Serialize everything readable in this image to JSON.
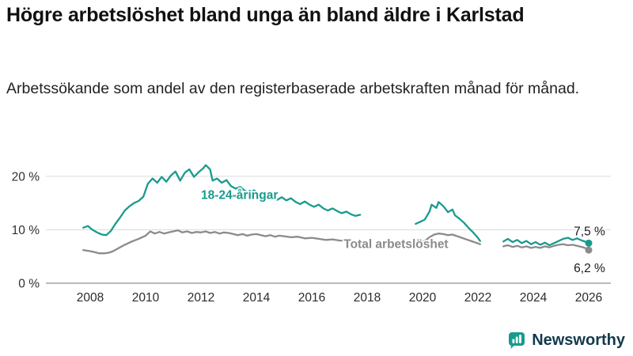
{
  "header": {
    "title": "Högre arbetslöshet bland unga än bland äldre i Karlstad",
    "subtitle": "Arbetssökande som andel av den registerbaserade arbetskraften månad för månad."
  },
  "footer": {
    "brand": "Newsworthy"
  },
  "colors": {
    "accent_teal": "#189b8e",
    "line_gray": "#8b8b8b",
    "grid_light": "#dcdcdc",
    "axis_baseline": "#919191",
    "text_dark": "#1a1a1a",
    "brand_text": "#123a4c"
  },
  "chart_data": {
    "type": "line",
    "title": "Högre arbetslöshet bland unga än bland äldre i Karlstad",
    "subtitle": "Arbetssökande som andel av den registerbaserade arbetskraften månad för månad.",
    "unit": "%",
    "grid": "horizontal",
    "legend_position": "inline",
    "xlim": [
      2006.4,
      2026.8
    ],
    "ylim": [
      0,
      22.8
    ],
    "x_ticks": [
      2008,
      2010,
      2012,
      2014,
      2016,
      2018,
      2020,
      2022,
      2024,
      2026
    ],
    "y_ticks": [
      {
        "value": 0,
        "label": "0 %"
      },
      {
        "value": 10,
        "label": "10 %"
      },
      {
        "value": 20,
        "label": "20 %"
      }
    ],
    "series": [
      {
        "id": "total",
        "name": "Total arbetslöshet",
        "color": "#8b8b8b",
        "end_value": 6.2,
        "end_label": {
          "text": "6,2 %",
          "placement": "below"
        },
        "inline_label": {
          "x": 2017.15,
          "y": 6.6
        },
        "segments": [
          [
            [
              2007.75,
              6.2
            ],
            [
              2008.0,
              6.0
            ],
            [
              2008.17,
              5.8
            ],
            [
              2008.33,
              5.6
            ],
            [
              2008.5,
              5.6
            ],
            [
              2008.67,
              5.7
            ],
            [
              2008.83,
              6.0
            ],
            [
              2009.0,
              6.5
            ],
            [
              2009.25,
              7.2
            ],
            [
              2009.5,
              7.8
            ],
            [
              2009.75,
              8.3
            ],
            [
              2010.0,
              8.9
            ],
            [
              2010.17,
              9.7
            ],
            [
              2010.33,
              9.3
            ],
            [
              2010.5,
              9.6
            ],
            [
              2010.67,
              9.3
            ],
            [
              2010.83,
              9.5
            ],
            [
              2011.0,
              9.7
            ],
            [
              2011.17,
              9.9
            ],
            [
              2011.33,
              9.5
            ],
            [
              2011.5,
              9.7
            ],
            [
              2011.67,
              9.4
            ],
            [
              2011.83,
              9.6
            ],
            [
              2012.0,
              9.5
            ],
            [
              2012.17,
              9.7
            ],
            [
              2012.33,
              9.4
            ],
            [
              2012.5,
              9.6
            ],
            [
              2012.67,
              9.3
            ],
            [
              2012.83,
              9.5
            ],
            [
              2013.0,
              9.4
            ],
            [
              2013.17,
              9.2
            ],
            [
              2013.33,
              9.0
            ],
            [
              2013.5,
              9.2
            ],
            [
              2013.67,
              8.9
            ],
            [
              2013.83,
              9.1
            ],
            [
              2014.0,
              9.2
            ],
            [
              2014.17,
              9.0
            ],
            [
              2014.33,
              8.8
            ],
            [
              2014.5,
              9.0
            ],
            [
              2014.67,
              8.7
            ],
            [
              2014.83,
              8.9
            ],
            [
              2015.0,
              8.8
            ],
            [
              2015.25,
              8.6
            ],
            [
              2015.5,
              8.7
            ],
            [
              2015.75,
              8.4
            ],
            [
              2016.0,
              8.5
            ],
            [
              2016.25,
              8.3
            ],
            [
              2016.5,
              8.1
            ],
            [
              2016.75,
              8.2
            ],
            [
              2017.0,
              8.0
            ],
            [
              2017.25,
              7.9
            ],
            [
              2017.5,
              7.8
            ],
            [
              2017.75,
              7.8
            ]
          ],
          [
            [
              2019.75,
              7.4
            ],
            [
              2019.92,
              7.6
            ],
            [
              2020.08,
              7.9
            ],
            [
              2020.25,
              8.6
            ],
            [
              2020.42,
              9.1
            ],
            [
              2020.58,
              9.3
            ],
            [
              2020.75,
              9.2
            ],
            [
              2020.92,
              9.0
            ],
            [
              2021.08,
              9.1
            ],
            [
              2021.25,
              8.8
            ],
            [
              2021.42,
              8.5
            ],
            [
              2021.58,
              8.2
            ],
            [
              2021.75,
              7.9
            ],
            [
              2021.92,
              7.6
            ],
            [
              2022.08,
              7.3
            ]
          ],
          [
            [
              2022.92,
              6.9
            ],
            [
              2023.08,
              7.1
            ],
            [
              2023.25,
              6.8
            ],
            [
              2023.42,
              7.0
            ],
            [
              2023.58,
              6.7
            ],
            [
              2023.75,
              6.9
            ],
            [
              2023.92,
              6.6
            ],
            [
              2024.08,
              6.8
            ],
            [
              2024.25,
              6.6
            ],
            [
              2024.42,
              6.9
            ],
            [
              2024.58,
              6.7
            ],
            [
              2024.75,
              7.0
            ],
            [
              2024.92,
              7.2
            ],
            [
              2025.08,
              7.3
            ],
            [
              2025.25,
              7.1
            ],
            [
              2025.42,
              7.2
            ],
            [
              2025.58,
              7.0
            ],
            [
              2025.75,
              6.8
            ],
            [
              2025.92,
              6.5
            ],
            [
              2026.0,
              6.2
            ]
          ]
        ]
      },
      {
        "id": "youth",
        "name": "18-24-åringar",
        "color": "#189b8e",
        "end_value": 7.5,
        "end_label": {
          "text": "7,5 %",
          "placement": "above"
        },
        "inline_label": {
          "x": 2012.0,
          "y": 15.8
        },
        "segments": [
          [
            [
              2007.75,
              10.4
            ],
            [
              2007.92,
              10.7
            ],
            [
              2008.08,
              10.0
            ],
            [
              2008.25,
              9.5
            ],
            [
              2008.42,
              9.1
            ],
            [
              2008.58,
              9.0
            ],
            [
              2008.75,
              9.8
            ],
            [
              2008.92,
              11.2
            ],
            [
              2009.08,
              12.3
            ],
            [
              2009.25,
              13.6
            ],
            [
              2009.42,
              14.4
            ],
            [
              2009.58,
              15.0
            ],
            [
              2009.75,
              15.4
            ],
            [
              2009.92,
              16.2
            ],
            [
              2010.08,
              18.6
            ],
            [
              2010.25,
              19.6
            ],
            [
              2010.42,
              18.8
            ],
            [
              2010.58,
              19.9
            ],
            [
              2010.75,
              19.0
            ],
            [
              2010.92,
              20.2
            ],
            [
              2011.08,
              20.9
            ],
            [
              2011.25,
              19.2
            ],
            [
              2011.42,
              20.7
            ],
            [
              2011.58,
              21.3
            ],
            [
              2011.75,
              19.9
            ],
            [
              2011.92,
              20.8
            ],
            [
              2012.08,
              21.5
            ],
            [
              2012.17,
              22.1
            ],
            [
              2012.33,
              21.3
            ],
            [
              2012.42,
              19.2
            ],
            [
              2012.58,
              19.6
            ],
            [
              2012.75,
              18.8
            ],
            [
              2012.92,
              19.3
            ],
            [
              2013.08,
              18.2
            ],
            [
              2013.25,
              17.7
            ],
            [
              2013.42,
              18.0
            ],
            [
              2013.58,
              17.3
            ],
            [
              2013.75,
              16.9
            ],
            [
              2013.92,
              17.4
            ],
            [
              2014.08,
              16.7
            ],
            [
              2014.25,
              16.3
            ],
            [
              2014.42,
              16.7
            ],
            [
              2014.58,
              16.0
            ],
            [
              2014.75,
              15.6
            ],
            [
              2014.92,
              16.1
            ],
            [
              2015.08,
              15.5
            ],
            [
              2015.25,
              15.9
            ],
            [
              2015.42,
              15.2
            ],
            [
              2015.58,
              14.8
            ],
            [
              2015.75,
              15.3
            ],
            [
              2015.92,
              14.7
            ],
            [
              2016.08,
              14.3
            ],
            [
              2016.25,
              14.7
            ],
            [
              2016.42,
              14.0
            ],
            [
              2016.58,
              13.6
            ],
            [
              2016.75,
              14.0
            ],
            [
              2016.92,
              13.5
            ],
            [
              2017.08,
              13.1
            ],
            [
              2017.25,
              13.4
            ],
            [
              2017.42,
              12.9
            ],
            [
              2017.58,
              12.6
            ],
            [
              2017.75,
              12.8
            ]
          ],
          [
            [
              2019.75,
              11.1
            ],
            [
              2019.92,
              11.5
            ],
            [
              2020.08,
              11.9
            ],
            [
              2020.25,
              13.4
            ],
            [
              2020.33,
              14.7
            ],
            [
              2020.5,
              14.1
            ],
            [
              2020.58,
              15.2
            ],
            [
              2020.75,
              14.4
            ],
            [
              2020.92,
              13.3
            ],
            [
              2021.08,
              13.8
            ],
            [
              2021.17,
              12.7
            ],
            [
              2021.33,
              12.1
            ],
            [
              2021.5,
              11.3
            ],
            [
              2021.67,
              10.3
            ],
            [
              2021.83,
              9.5
            ],
            [
              2022.0,
              8.5
            ],
            [
              2022.08,
              7.9
            ]
          ],
          [
            [
              2022.92,
              7.8
            ],
            [
              2023.08,
              8.3
            ],
            [
              2023.25,
              7.7
            ],
            [
              2023.42,
              8.1
            ],
            [
              2023.58,
              7.5
            ],
            [
              2023.75,
              7.9
            ],
            [
              2023.92,
              7.3
            ],
            [
              2024.08,
              7.7
            ],
            [
              2024.25,
              7.2
            ],
            [
              2024.42,
              7.6
            ],
            [
              2024.58,
              7.1
            ],
            [
              2024.75,
              7.5
            ],
            [
              2024.92,
              7.9
            ],
            [
              2025.08,
              8.3
            ],
            [
              2025.25,
              8.5
            ],
            [
              2025.42,
              8.1
            ],
            [
              2025.58,
              8.4
            ],
            [
              2025.75,
              8.0
            ],
            [
              2025.92,
              7.7
            ],
            [
              2026.0,
              7.5
            ]
          ]
        ]
      }
    ]
  }
}
